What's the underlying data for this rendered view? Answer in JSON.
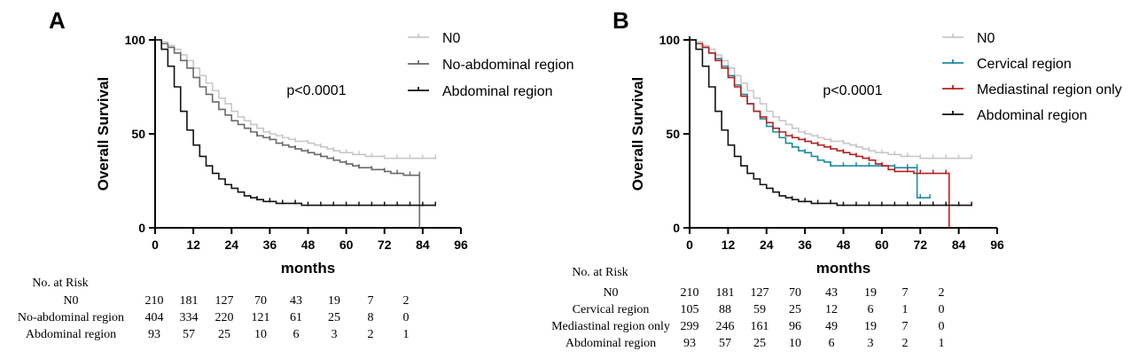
{
  "chart_data": [
    {
      "type": "line",
      "subtype": "kaplan-meier",
      "panel_label": "A",
      "xlabel": "months",
      "ylabel": "Overall Survival",
      "xlim": [
        0,
        96
      ],
      "ylim": [
        0,
        100
      ],
      "xticks": [
        "0",
        "12",
        "24",
        "36",
        "48",
        "60",
        "72",
        "84",
        "96"
      ],
      "yticks": [
        "0",
        "50",
        "100"
      ],
      "annotation": "p<0.0001",
      "legend_position": "top-right",
      "series": [
        {
          "name": "N0",
          "color": "#c8c8c8",
          "x": [
            0,
            2,
            4,
            6,
            8,
            10,
            12,
            14,
            16,
            18,
            20,
            22,
            24,
            26,
            28,
            30,
            32,
            34,
            36,
            38,
            40,
            42,
            44,
            46,
            48,
            50,
            52,
            54,
            56,
            58,
            60,
            62,
            64,
            66,
            68,
            70,
            72,
            74,
            76,
            78,
            80,
            82,
            84,
            86,
            88
          ],
          "y": [
            100,
            99,
            97,
            95,
            92,
            89,
            85,
            81,
            77,
            73,
            69,
            66,
            62,
            59,
            57,
            55,
            53,
            51,
            50,
            49,
            48,
            47,
            46,
            46,
            45,
            44,
            43,
            42,
            41,
            40,
            40,
            39,
            39,
            38,
            38,
            38,
            37,
            37,
            37,
            37,
            37,
            37,
            37,
            37,
            37
          ]
        },
        {
          "name": "No-abdominal region",
          "color": "#6a6a6a",
          "x": [
            0,
            2,
            4,
            6,
            8,
            10,
            12,
            14,
            16,
            18,
            20,
            22,
            24,
            26,
            28,
            30,
            32,
            34,
            36,
            38,
            40,
            42,
            44,
            46,
            48,
            50,
            52,
            54,
            56,
            58,
            60,
            62,
            64,
            66,
            68,
            70,
            72,
            74,
            76,
            78,
            80,
            82,
            83,
            83
          ],
          "y": [
            100,
            98,
            96,
            93,
            89,
            85,
            80,
            75,
            71,
            67,
            63,
            60,
            57,
            55,
            53,
            51,
            49,
            48,
            47,
            45,
            44,
            43,
            42,
            41,
            40,
            39,
            38,
            37,
            36,
            35,
            34,
            33,
            32,
            32,
            31,
            31,
            30,
            29,
            29,
            28,
            28,
            28,
            28,
            0
          ]
        },
        {
          "name": "Abdominal region",
          "color": "#111111",
          "x": [
            0,
            2,
            4,
            6,
            8,
            10,
            12,
            14,
            16,
            18,
            20,
            22,
            24,
            26,
            28,
            30,
            32,
            34,
            36,
            38,
            40,
            42,
            44,
            46,
            48,
            50,
            52,
            54,
            56,
            58,
            60,
            62,
            64,
            66,
            68,
            70,
            72,
            74,
            76,
            78,
            80,
            82,
            84,
            86,
            88
          ],
          "y": [
            100,
            95,
            86,
            75,
            62,
            52,
            44,
            38,
            33,
            29,
            26,
            23,
            21,
            19,
            17,
            16,
            15,
            14,
            14,
            13,
            13,
            13,
            13,
            12,
            12,
            12,
            12,
            12,
            12,
            12,
            12,
            12,
            12,
            12,
            12,
            12,
            12,
            12,
            12,
            12,
            12,
            12,
            12,
            12,
            12
          ]
        }
      ],
      "risk_table": {
        "title": "No. at Risk",
        "rows": [
          {
            "label": "N0",
            "values": [
              "210",
              "181",
              "127",
              "70",
              "43",
              "19",
              "7",
              "2"
            ]
          },
          {
            "label": "No-abdominal region",
            "values": [
              "404",
              "334",
              "220",
              "121",
              "61",
              "25",
              "8",
              "0"
            ]
          },
          {
            "label": "Abdominal region",
            "values": [
              "93",
              "57",
              "25",
              "10",
              "6",
              "3",
              "2",
              "1"
            ]
          }
        ]
      }
    },
    {
      "type": "line",
      "subtype": "kaplan-meier",
      "panel_label": "B",
      "xlabel": "months",
      "ylabel": "Overall Survival",
      "xlim": [
        0,
        96
      ],
      "ylim": [
        0,
        100
      ],
      "xticks": [
        "0",
        "12",
        "24",
        "36",
        "48",
        "60",
        "72",
        "84",
        "96"
      ],
      "yticks": [
        "0",
        "50",
        "100"
      ],
      "annotation": "p<0.0001",
      "legend_position": "top-right",
      "series": [
        {
          "name": "N0",
          "color": "#c8c8c8",
          "x": [
            0,
            2,
            4,
            6,
            8,
            10,
            12,
            14,
            16,
            18,
            20,
            22,
            24,
            26,
            28,
            30,
            32,
            34,
            36,
            38,
            40,
            42,
            44,
            46,
            48,
            50,
            52,
            54,
            56,
            58,
            60,
            62,
            64,
            66,
            68,
            70,
            72,
            74,
            76,
            78,
            80,
            82,
            84,
            86,
            88
          ],
          "y": [
            100,
            99,
            97,
            95,
            92,
            89,
            85,
            81,
            77,
            73,
            69,
            66,
            62,
            59,
            57,
            55,
            53,
            51,
            50,
            49,
            48,
            47,
            46,
            46,
            45,
            44,
            43,
            42,
            41,
            40,
            40,
            39,
            39,
            38,
            38,
            38,
            37,
            37,
            37,
            37,
            37,
            37,
            37,
            37,
            37
          ]
        },
        {
          "name": "Cervical region",
          "color": "#1e8aa0",
          "x": [
            0,
            2,
            4,
            6,
            8,
            10,
            12,
            14,
            16,
            18,
            20,
            22,
            24,
            26,
            28,
            30,
            32,
            34,
            36,
            38,
            40,
            42,
            44,
            46,
            48,
            50,
            52,
            54,
            56,
            58,
            60,
            62,
            64,
            66,
            68,
            70,
            71,
            71,
            72,
            74,
            75
          ],
          "y": [
            100,
            98,
            96,
            93,
            90,
            86,
            81,
            76,
            71,
            66,
            62,
            58,
            54,
            51,
            48,
            45,
            43,
            41,
            40,
            38,
            36,
            35,
            33,
            33,
            33,
            33,
            33,
            33,
            33,
            33,
            33,
            33,
            32,
            32,
            32,
            32,
            32,
            16,
            16,
            16,
            16
          ]
        },
        {
          "name": "Mediastinal region only",
          "color": "#b22222",
          "x": [
            0,
            2,
            4,
            6,
            8,
            10,
            12,
            14,
            16,
            18,
            20,
            22,
            24,
            26,
            28,
            30,
            32,
            34,
            36,
            38,
            40,
            42,
            44,
            46,
            48,
            50,
            52,
            54,
            56,
            58,
            60,
            62,
            64,
            66,
            68,
            70,
            72,
            74,
            76,
            78,
            80,
            81,
            81
          ],
          "y": [
            100,
            98,
            96,
            93,
            89,
            85,
            80,
            75,
            70,
            66,
            62,
            59,
            56,
            53,
            51,
            49,
            48,
            47,
            46,
            45,
            44,
            43,
            42,
            41,
            40,
            39,
            38,
            37,
            36,
            34,
            33,
            31,
            30,
            30,
            30,
            29,
            29,
            29,
            29,
            29,
            29,
            29,
            0
          ]
        },
        {
          "name": "Abdominal region",
          "color": "#111111",
          "x": [
            0,
            2,
            4,
            6,
            8,
            10,
            12,
            14,
            16,
            18,
            20,
            22,
            24,
            26,
            28,
            30,
            32,
            34,
            36,
            38,
            40,
            42,
            44,
            46,
            48,
            50,
            52,
            54,
            56,
            58,
            60,
            62,
            64,
            66,
            68,
            70,
            72,
            74,
            76,
            78,
            80,
            82,
            84,
            86,
            88
          ],
          "y": [
            100,
            95,
            86,
            75,
            62,
            52,
            44,
            38,
            33,
            29,
            26,
            23,
            21,
            19,
            17,
            16,
            15,
            14,
            14,
            13,
            13,
            13,
            13,
            12,
            12,
            12,
            12,
            12,
            12,
            12,
            12,
            12,
            12,
            12,
            12,
            12,
            12,
            12,
            12,
            12,
            12,
            12,
            12,
            12,
            12
          ]
        }
      ],
      "risk_table": {
        "title": "No. at Risk",
        "rows": [
          {
            "label": "N0",
            "values": [
              "210",
              "181",
              "127",
              "70",
              "43",
              "19",
              "7",
              "2"
            ]
          },
          {
            "label": "Cervical region",
            "values": [
              "105",
              "88",
              "59",
              "25",
              "12",
              "6",
              "1",
              "0"
            ]
          },
          {
            "label": "Mediastinal region only",
            "values": [
              "299",
              "246",
              "161",
              "96",
              "49",
              "19",
              "7",
              "0"
            ]
          },
          {
            "label": "Abdominal region",
            "values": [
              "93",
              "57",
              "25",
              "10",
              "6",
              "3",
              "2",
              "1"
            ]
          }
        ]
      }
    }
  ]
}
